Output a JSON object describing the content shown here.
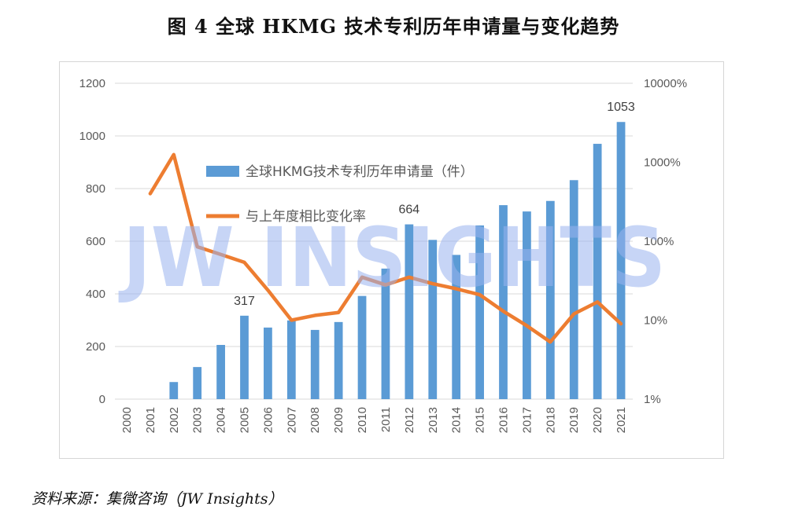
{
  "title": "图 4 全球 HKMG 技术专利历年申请量与变化趋势",
  "source": "资料来源：集微咨询（JW Insights）",
  "watermark": "JW INSIGHTS",
  "chart_data": {
    "type": "bar",
    "categories": [
      "2000",
      "2001",
      "2002",
      "2003",
      "2004",
      "2005",
      "2006",
      "2007",
      "2008",
      "2009",
      "2010",
      "2011",
      "2012",
      "2013",
      "2014",
      "2015",
      "2016",
      "2017",
      "2018",
      "2019",
      "2020",
      "2021"
    ],
    "series": [
      {
        "name": "全球HKMG技术专利历年申请量（件）",
        "type": "bar",
        "axis": "left",
        "color": "#5b9bd5",
        "values": [
          0,
          0,
          65,
          122,
          206,
          317,
          272,
          299,
          263,
          293,
          392,
          496,
          664,
          605,
          548,
          660,
          737,
          713,
          753,
          832,
          970,
          1053
        ]
      },
      {
        "name": "与上年度相比变化率",
        "type": "line",
        "axis": "right",
        "color": "#ed7d31",
        "values": [
          null,
          400,
          1250,
          85,
          68,
          54,
          24,
          10,
          11.5,
          12.5,
          35,
          28,
          35,
          29,
          25,
          21,
          13,
          8.5,
          5.3,
          12,
          17,
          9
        ]
      }
    ],
    "left_axis": {
      "ylim": [
        0,
        1200
      ],
      "ticks": [
        "0",
        "200",
        "400",
        "600",
        "800",
        "1000",
        "1200"
      ]
    },
    "right_axis": {
      "scale": "log",
      "ylim": [
        1,
        10000
      ],
      "ticks": [
        "1%",
        "10%",
        "100%",
        "1000%",
        "10000%"
      ]
    },
    "data_labels": [
      {
        "category": "2005",
        "text": "317"
      },
      {
        "category": "2012",
        "text": "664"
      },
      {
        "category": "2021",
        "text": "1053"
      }
    ],
    "grid": true,
    "legend_position": "inside-top-center"
  }
}
